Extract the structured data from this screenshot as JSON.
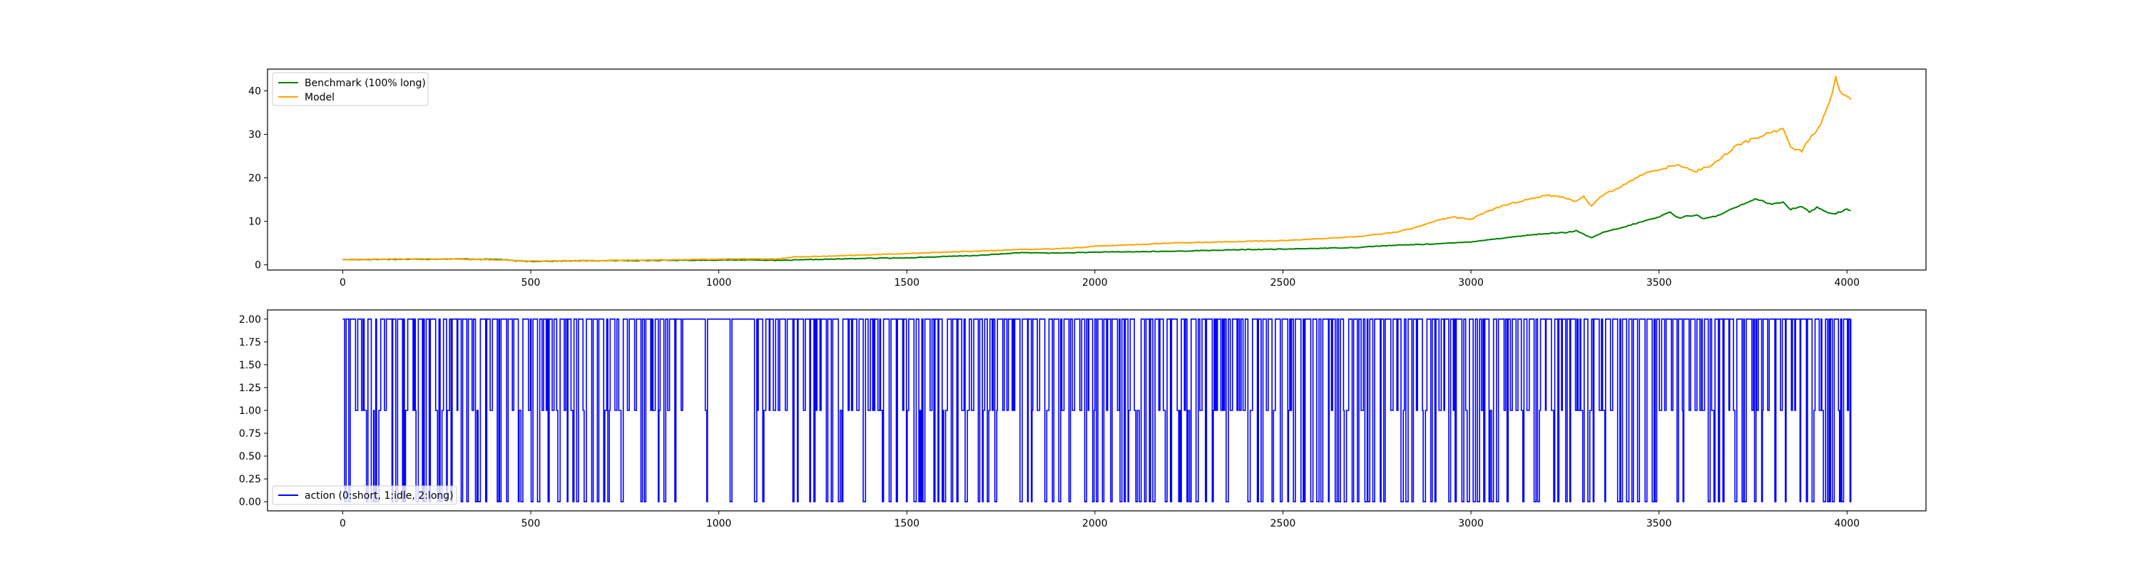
{
  "chart_data": [
    {
      "type": "line",
      "title": "",
      "xlabel": "",
      "ylabel": "",
      "xlim": [
        -200,
        4210
      ],
      "ylim": [
        -1.2,
        45
      ],
      "xticks": [
        0,
        500,
        1000,
        1500,
        2000,
        2500,
        3000,
        3500,
        4000
      ],
      "yticks": [
        0,
        10,
        20,
        30,
        40
      ],
      "grid": false,
      "legend_position": "top-left",
      "series": [
        {
          "name": "Benchmark (100% long)",
          "color": "#008000",
          "x": [
            0,
            100,
            200,
            300,
            380,
            420,
            460,
            500,
            600,
            700,
            800,
            900,
            1000,
            1100,
            1150,
            1200,
            1300,
            1400,
            1500,
            1600,
            1700,
            1750,
            1800,
            1900,
            2000,
            2100,
            2200,
            2300,
            2400,
            2500,
            2600,
            2700,
            2750,
            2800,
            2900,
            2950,
            3000,
            3050,
            3100,
            3150,
            3200,
            3250,
            3280,
            3300,
            3320,
            3350,
            3400,
            3450,
            3500,
            3530,
            3550,
            3600,
            3620,
            3650,
            3700,
            3750,
            3760,
            3800,
            3830,
            3850,
            3880,
            3900,
            3920,
            3950,
            3970,
            4000,
            4010
          ],
          "values": [
            1.2,
            1.25,
            1.3,
            1.35,
            1.3,
            1.25,
            0.9,
            0.8,
            0.9,
            0.95,
            1.0,
            1.05,
            1.1,
            1.15,
            1.0,
            1.1,
            1.3,
            1.5,
            1.6,
            1.9,
            2.2,
            2.5,
            2.8,
            2.7,
            2.9,
            3.0,
            3.1,
            3.3,
            3.5,
            3.6,
            3.8,
            4.0,
            4.3,
            4.5,
            4.8,
            5.0,
            5.3,
            5.8,
            6.3,
            6.8,
            7.2,
            7.4,
            7.8,
            7.0,
            6.2,
            7.4,
            8.5,
            9.8,
            11.0,
            12.2,
            10.8,
            11.5,
            10.5,
            11.2,
            13.0,
            14.8,
            15.2,
            13.8,
            14.5,
            12.8,
            13.5,
            12.2,
            13.2,
            12.0,
            11.8,
            12.8,
            12.5
          ]
        },
        {
          "name": "Model",
          "color": "#ffa500",
          "x": [
            0,
            100,
            200,
            300,
            380,
            420,
            460,
            500,
            600,
            700,
            800,
            900,
            1000,
            1100,
            1150,
            1200,
            1300,
            1400,
            1500,
            1600,
            1700,
            1800,
            1900,
            1950,
            2000,
            2100,
            2200,
            2300,
            2400,
            2500,
            2600,
            2700,
            2750,
            2800,
            2850,
            2900,
            2950,
            3000,
            3050,
            3100,
            3150,
            3200,
            3250,
            3280,
            3300,
            3320,
            3350,
            3400,
            3450,
            3500,
            3550,
            3600,
            3650,
            3700,
            3750,
            3800,
            3830,
            3850,
            3880,
            3900,
            3930,
            3960,
            3970,
            3980,
            4000,
            4010
          ],
          "values": [
            1.2,
            1.3,
            1.35,
            1.3,
            1.2,
            1.1,
            0.95,
            0.85,
            0.95,
            1.0,
            1.1,
            1.2,
            1.3,
            1.4,
            1.3,
            1.8,
            2.0,
            2.3,
            2.6,
            2.9,
            3.2,
            3.5,
            3.7,
            3.9,
            4.3,
            4.6,
            5.0,
            5.2,
            5.4,
            5.6,
            6.0,
            6.5,
            7.0,
            7.5,
            8.5,
            10.0,
            11.0,
            10.5,
            12.5,
            14.0,
            15.0,
            16.0,
            15.5,
            14.5,
            15.8,
            13.5,
            16.0,
            18.0,
            20.5,
            22.0,
            23.0,
            21.5,
            23.5,
            27.0,
            29.0,
            30.5,
            31.5,
            27.0,
            26.0,
            29.0,
            32.0,
            39.0,
            43.0,
            40.0,
            38.5,
            38.0
          ]
        }
      ]
    },
    {
      "type": "line",
      "title": "",
      "xlabel": "",
      "ylabel": "",
      "xlim": [
        -200,
        4210
      ],
      "ylim": [
        -0.1,
        2.1
      ],
      "xticks": [
        0,
        500,
        1000,
        1500,
        2000,
        2500,
        3000,
        3500,
        4000
      ],
      "yticks": [
        0.0,
        0.25,
        0.5,
        0.75,
        1.0,
        1.25,
        1.5,
        1.75,
        2.0
      ],
      "ytick_labels": [
        "0.00",
        "0.25",
        "0.50",
        "0.75",
        "1.00",
        "1.25",
        "1.50",
        "1.75",
        "2.00"
      ],
      "grid": false,
      "legend_position": "bottom-left",
      "step_series_note": "discrete action values in {0,1,2}, drawn as a step line",
      "series": [
        {
          "name": "action (0:short, 1:idle, 2:long)",
          "color": "#0000ff",
          "domain": [
            0,
            4010
          ],
          "levels": [
            0,
            1,
            2
          ]
        }
      ]
    }
  ],
  "xtick_labels": [
    "0",
    "500",
    "1000",
    "1500",
    "2000",
    "2500",
    "3000",
    "3500",
    "4000"
  ],
  "top_ytick_labels": [
    "0",
    "10",
    "20",
    "30",
    "40"
  ]
}
